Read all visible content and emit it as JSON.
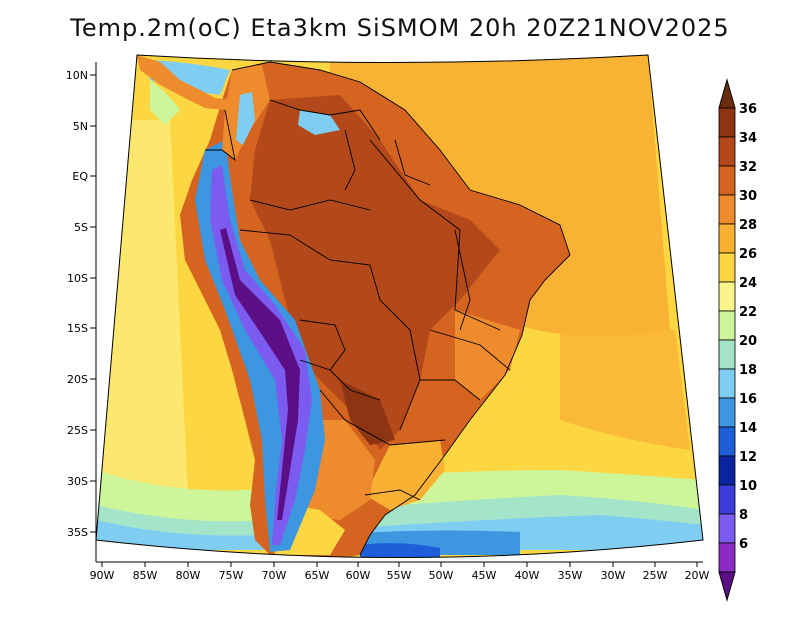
{
  "title": "Temp.2m(oC) Eta3km SiSMOM 20h 20Z21NOV2025",
  "axes": {
    "lat_labels": [
      "10N",
      "5N",
      "EQ",
      "5S",
      "10S",
      "15S",
      "20S",
      "25S",
      "30S",
      "35S"
    ],
    "lon_labels": [
      "90W",
      "85W",
      "80W",
      "75W",
      "70W",
      "65W",
      "60W",
      "55W",
      "50W",
      "45W",
      "40W",
      "35W",
      "30W",
      "25W",
      "20W"
    ]
  },
  "colorbar": {
    "labels": [
      "36",
      "34",
      "32",
      "30",
      "28",
      "26",
      "24",
      "22",
      "20",
      "18",
      "16",
      "14",
      "12",
      "10",
      "8",
      "6"
    ],
    "colors": [
      "#6b2c10",
      "#8d3512",
      "#b3481a",
      "#d4641f",
      "#ee8c2d",
      "#f9b134",
      "#fcd741",
      "#fbf38c",
      "#cdf59a",
      "#a4e5c9",
      "#7fcdf0",
      "#3c96e0",
      "#1e5ed8",
      "#0a24a0",
      "#3b3ddd",
      "#7c5cf0",
      "#8c2bc4",
      "#5b0e86"
    ]
  },
  "legend_colors": {
    "ocean_warm": "#f9b134",
    "ocean_mid": "#fcd741",
    "land_hot": "#d4641f",
    "land_very_hot": "#b3481a",
    "andes_cold": "#3c96e0",
    "andes_coldest": "#5b0e86",
    "south_cool": "#7fcdf0"
  }
}
